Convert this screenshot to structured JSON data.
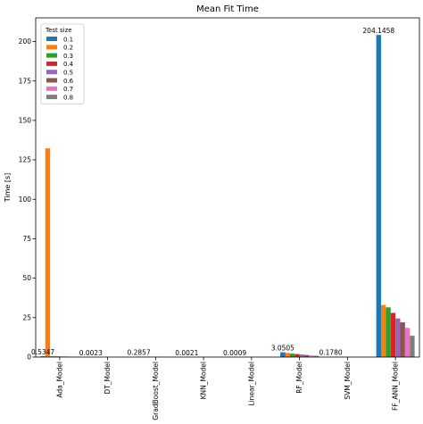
{
  "chart_data": {
    "type": "bar",
    "title": "Mean Fit Time",
    "xlabel": "",
    "ylabel": "Time [s]",
    "ylim": [
      0,
      215
    ],
    "yticks": [
      0,
      25,
      50,
      75,
      100,
      125,
      150,
      175,
      200
    ],
    "grid": false,
    "legend": {
      "title": "Test size",
      "placement": "top-left"
    },
    "categories": [
      "Ada_Model",
      "DT_Model",
      "GradBoost_Model",
      "KNN_Model",
      "Linear_Model",
      "RF_Model",
      "SVM_Model",
      "FF_ANN_Model"
    ],
    "series": [
      {
        "name": "0.1",
        "color": "#1f77b4",
        "values": [
          0.5347,
          0.0023,
          0.2857,
          0.0021,
          0.0009,
          3.0505,
          0.178,
          204.1458
        ]
      },
      {
        "name": "0.2",
        "color": "#ff7f0e",
        "values": [
          132.3,
          0.0021,
          0.26,
          0.002,
          0.0008,
          2.6,
          0.16,
          33.0
        ]
      },
      {
        "name": "0.3",
        "color": "#2ca02c",
        "values": [
          0.47,
          0.002,
          0.23,
          0.0019,
          0.0008,
          2.2,
          0.14,
          31.5
        ]
      },
      {
        "name": "0.4",
        "color": "#d62728",
        "values": [
          0.42,
          0.0018,
          0.2,
          0.0017,
          0.0007,
          1.9,
          0.12,
          28.0
        ]
      },
      {
        "name": "0.5",
        "color": "#9467bd",
        "values": [
          0.37,
          0.0016,
          0.17,
          0.0015,
          0.0007,
          1.6,
          0.1,
          24.5
        ]
      },
      {
        "name": "0.6",
        "color": "#8c564b",
        "values": [
          0.32,
          0.0014,
          0.14,
          0.0013,
          0.0006,
          1.3,
          0.08,
          22.0
        ]
      },
      {
        "name": "0.7",
        "color": "#e377c2",
        "values": [
          0.28,
          0.0012,
          0.11,
          0.0011,
          0.0005,
          1.0,
          0.06,
          18.5
        ]
      },
      {
        "name": "0.8",
        "color": "#7f7f7f",
        "values": [
          0.23,
          0.001,
          0.08,
          0.0009,
          0.0005,
          0.8,
          0.04,
          13.5
        ]
      }
    ],
    "bar_labels": [
      "0.5347",
      "0.0023",
      "0.2857",
      "0.0021",
      "0.0009",
      "3.0505",
      "0.1780",
      "204.1458"
    ]
  }
}
